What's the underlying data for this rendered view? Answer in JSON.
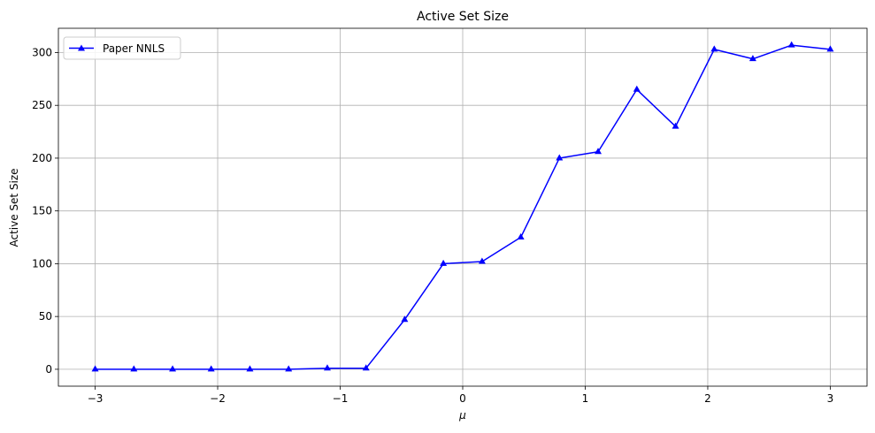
{
  "chart_data": {
    "type": "line",
    "title": "Active Set Size",
    "xlabel": "μ",
    "ylabel": "Active Set Size",
    "xlim": [
      -3.3,
      3.3
    ],
    "ylim": [
      -16,
      323
    ],
    "grid": true,
    "legend_position": "top-left",
    "x_ticks": [
      {
        "value": -3,
        "label": "−3"
      },
      {
        "value": -2,
        "label": "−2"
      },
      {
        "value": -1,
        "label": "−1"
      },
      {
        "value": 0,
        "label": "0"
      },
      {
        "value": 1,
        "label": "1"
      },
      {
        "value": 2,
        "label": "2"
      },
      {
        "value": 3,
        "label": "3"
      }
    ],
    "y_ticks": [
      {
        "value": 0,
        "label": "0"
      },
      {
        "value": 50,
        "label": "50"
      },
      {
        "value": 100,
        "label": "100"
      },
      {
        "value": 150,
        "label": "150"
      },
      {
        "value": 200,
        "label": "200"
      },
      {
        "value": 250,
        "label": "250"
      },
      {
        "value": 300,
        "label": "300"
      }
    ],
    "x": [
      -3.0,
      -2.684,
      -2.368,
      -2.053,
      -1.737,
      -1.421,
      -1.105,
      -0.789,
      -0.474,
      -0.158,
      0.158,
      0.474,
      0.789,
      1.105,
      1.421,
      1.737,
      2.053,
      2.368,
      2.684,
      3.0
    ],
    "series": [
      {
        "name": "Paper NNLS",
        "color": "#0000ff",
        "marker": "triangle-up",
        "values": [
          0,
          0,
          0,
          0,
          0,
          0,
          1,
          1,
          47,
          100,
          102,
          125,
          200,
          206,
          265,
          230,
          303,
          294,
          307,
          303
        ]
      }
    ]
  }
}
